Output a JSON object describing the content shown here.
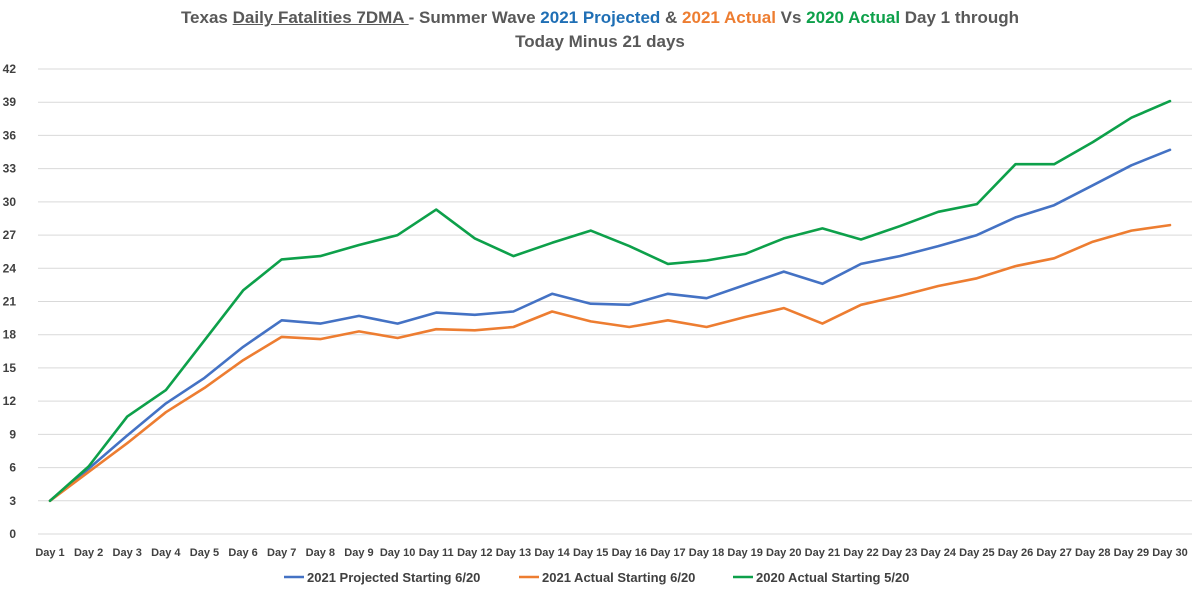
{
  "chart_data": {
    "type": "line",
    "title_parts": [
      {
        "text": "Texas ",
        "color": "#595959",
        "underline": false
      },
      {
        "text": "Daily Fatalities 7DMA ",
        "color": "#595959",
        "underline": true
      },
      {
        "text": "- Summer Wave ",
        "color": "#595959",
        "underline": false
      },
      {
        "text": "2021 Projected",
        "color": "#1F6FB5",
        "underline": false
      },
      {
        "text": " & ",
        "color": "#595959",
        "underline": false
      },
      {
        "text": "2021 Actual",
        "color": "#ED7D31",
        "underline": false
      },
      {
        "text": "  Vs  ",
        "color": "#595959",
        "underline": false
      },
      {
        "text": "2020 Actual",
        "color": "#0DA04A",
        "underline": false
      },
      {
        "text": " Day 1  through",
        "color": "#595959",
        "underline": false
      }
    ],
    "title_line2": "Today Minus 21 days",
    "categories": [
      "Day 1",
      "Day 2",
      "Day 3",
      "Day 4",
      "Day 5",
      "Day 6",
      "Day 7",
      "Day 8",
      "Day 9",
      "Day 10",
      "Day 11",
      "Day 12",
      "Day 13",
      "Day 14",
      "Day 15",
      "Day 16",
      "Day 17",
      "Day 18",
      "Day 19",
      "Day 20",
      "Day 21",
      "Day 22",
      "Day 23",
      "Day 24",
      "Day 25",
      "Day 26",
      "Day 27",
      "Day 28",
      "Day 29",
      "Day 30"
    ],
    "ylim": [
      0,
      42
    ],
    "yticks": [
      "0",
      "3",
      "6",
      "9",
      "12",
      "15",
      "18",
      "21",
      "24",
      "27",
      "30",
      "33",
      "36",
      "39",
      "42"
    ],
    "grid": true,
    "legend_position": "bottom",
    "series": [
      {
        "name": "2021 Projected Starting 6/20",
        "color": "#4472C4",
        "values": [
          3.0,
          5.9,
          8.9,
          11.8,
          14.1,
          16.9,
          19.3,
          19.0,
          19.7,
          19.0,
          20.0,
          19.8,
          20.1,
          21.7,
          20.8,
          20.7,
          21.7,
          21.3,
          22.5,
          23.7,
          22.6,
          24.4,
          25.1,
          26.0,
          27.0,
          28.6,
          29.7,
          31.5,
          33.3,
          34.7
        ]
      },
      {
        "name": "2021 Actual Starting 6/20",
        "color": "#ED7D31",
        "values": [
          3.0,
          5.6,
          8.2,
          11.0,
          13.2,
          15.7,
          17.8,
          17.6,
          18.3,
          17.7,
          18.5,
          18.4,
          18.7,
          20.1,
          19.2,
          18.7,
          19.3,
          18.7,
          19.6,
          20.4,
          19.0,
          20.7,
          21.5,
          22.4,
          23.1,
          24.2,
          24.9,
          26.4,
          27.4,
          27.9
        ]
      },
      {
        "name": "2020 Actual Starting 5/20",
        "color": "#0DA04A",
        "values": [
          3.0,
          6.1,
          10.6,
          13.0,
          17.5,
          22.0,
          24.8,
          25.1,
          26.1,
          27.0,
          29.3,
          26.7,
          25.1,
          26.3,
          27.4,
          26.0,
          24.4,
          24.7,
          25.3,
          26.7,
          27.6,
          26.6,
          27.8,
          29.1,
          29.8,
          33.4,
          33.4,
          35.4,
          37.6,
          39.1
        ]
      }
    ]
  }
}
